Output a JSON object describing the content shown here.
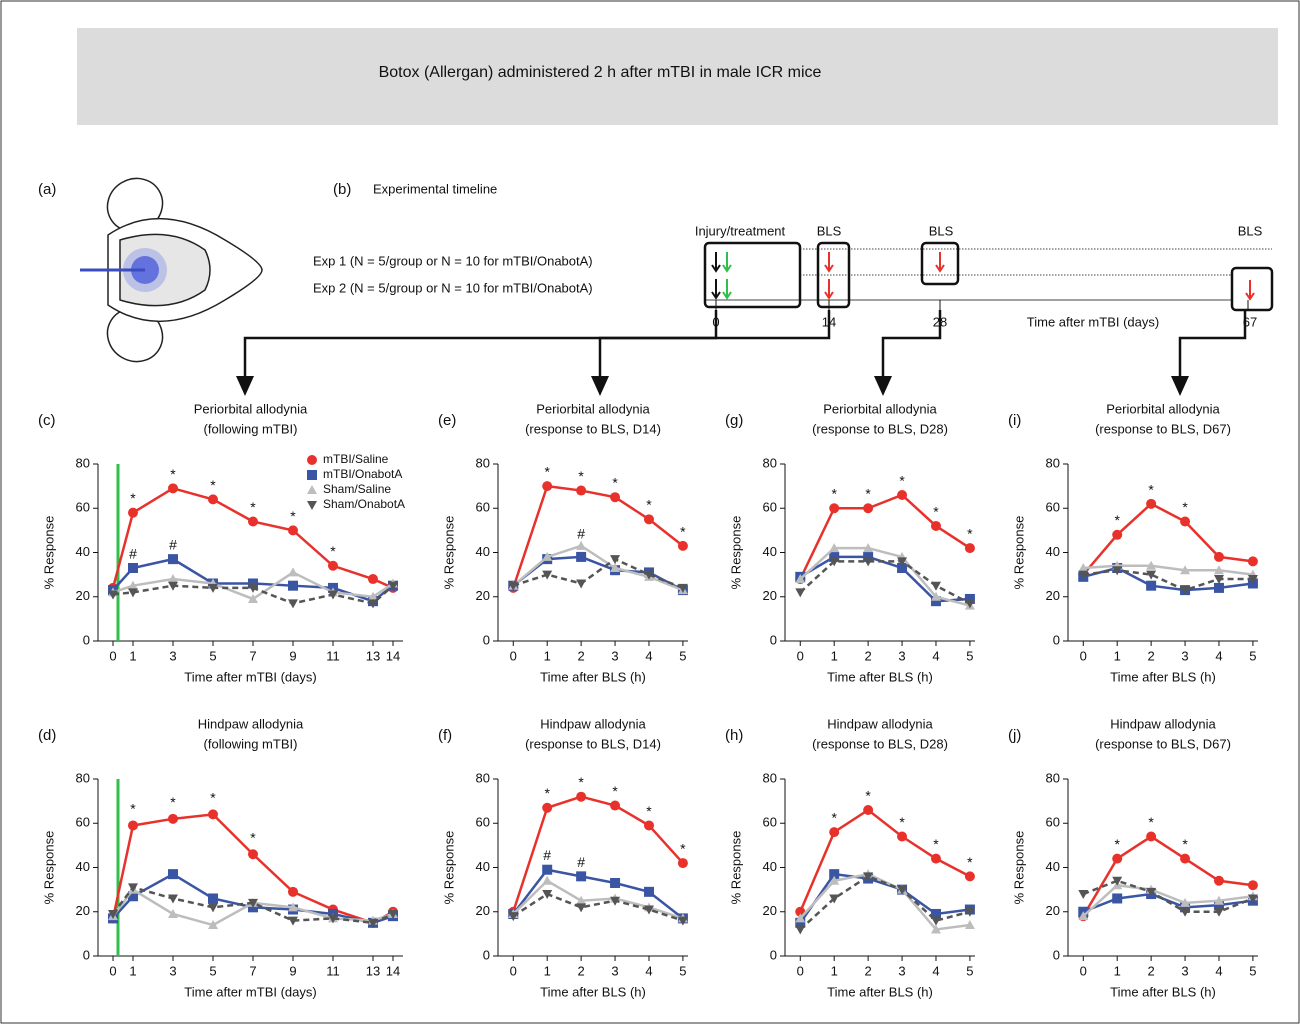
{
  "figure": {
    "banner": "Botox (Allergan) administered 2 h after mTBI in male ICR mice",
    "panel_a": "(a)",
    "panel_b": "(b)"
  },
  "timeline": {
    "title": "Experimental timeline",
    "labels": [
      "Injury/treatment",
      "BLS",
      "BLS",
      "BLS"
    ],
    "experiments": [
      "Exp 1 (N = 5/group or N = 10 for mTBI/OnabotA)",
      "Exp 2 (N = 5/group or N = 10 for mTBI/OnabotA)"
    ],
    "ticks": [
      "0",
      "14",
      "28",
      "67"
    ],
    "axis_label": "Time after mTBI (days)"
  },
  "chart_data": [
    {
      "type": "line",
      "panel": "(c)",
      "title": "Periorbital allodynia",
      "subtitle": "(following mTBI)",
      "x_label": "Time after mTBI (days)",
      "y_label": "% Response",
      "x": [
        0,
        1,
        3,
        5,
        7,
        9,
        11,
        13,
        14
      ],
      "xlim": [
        -0.75,
        14.5
      ],
      "xticks": [
        0,
        1,
        3,
        5,
        7,
        9,
        11,
        13,
        14
      ],
      "ylim": [
        0,
        80
      ],
      "yticks": [
        0,
        20,
        40,
        60,
        80
      ],
      "injury_line": {
        "x": 0.25,
        "color": "#2fbf4a"
      },
      "legend": "upper right",
      "series": [
        {
          "name": "mTBI/Saline",
          "color": "#e8312a",
          "marker": "circle",
          "dash": false,
          "values": [
            24,
            58,
            69,
            64,
            54,
            50,
            34,
            28,
            24
          ]
        },
        {
          "name": "mTBI/OnabotA",
          "color": "#3a55a4",
          "marker": "square",
          "dash": false,
          "values": [
            23,
            33,
            37,
            26,
            26,
            25,
            24,
            18,
            25
          ]
        },
        {
          "name": "Sham/Saline",
          "color": "#bdbdbd",
          "marker": "triangle-up",
          "dash": false,
          "values": [
            22,
            25,
            28,
            26,
            19,
            31,
            22,
            20,
            26
          ]
        },
        {
          "name": "Sham/OnabotA",
          "color": "#555555",
          "marker": "triangle-down",
          "dash": true,
          "values": [
            21,
            22,
            25,
            24,
            24,
            17,
            21,
            17,
            25
          ]
        }
      ],
      "annotations": [
        {
          "text": "*",
          "x": 1,
          "y": 64,
          "color": "#e8312a"
        },
        {
          "text": "*",
          "x": 3,
          "y": 75,
          "color": "#e8312a"
        },
        {
          "text": "*",
          "x": 5,
          "y": 70,
          "color": "#e8312a"
        },
        {
          "text": "*",
          "x": 7,
          "y": 60,
          "color": "#e8312a"
        },
        {
          "text": "*",
          "x": 9,
          "y": 56,
          "color": "#e8312a"
        },
        {
          "text": "*",
          "x": 11,
          "y": 40,
          "color": "#e8312a"
        },
        {
          "text": "#",
          "x": 1,
          "y": 39,
          "color": "#3a55a4"
        },
        {
          "text": "#",
          "x": 3,
          "y": 43,
          "color": "#3a55a4"
        }
      ]
    },
    {
      "type": "line",
      "panel": "(d)",
      "title": "Hindpaw allodynia",
      "subtitle": "(following mTBI)",
      "x_label": "Time after mTBI (days)",
      "y_label": "% Response",
      "x": [
        0,
        1,
        3,
        5,
        7,
        9,
        11,
        13,
        14
      ],
      "xlim": [
        -0.75,
        14.5
      ],
      "xticks": [
        0,
        1,
        3,
        5,
        7,
        9,
        11,
        13,
        14
      ],
      "ylim": [
        0,
        80
      ],
      "yticks": [
        0,
        20,
        40,
        60,
        80
      ],
      "injury_line": {
        "x": 0.25,
        "color": "#2fbf4a"
      },
      "series": [
        {
          "name": "mTBI/Saline",
          "color": "#e8312a",
          "marker": "circle",
          "dash": false,
          "values": [
            17,
            59,
            62,
            64,
            46,
            29,
            21,
            15,
            20
          ]
        },
        {
          "name": "mTBI/OnabotA",
          "color": "#3a55a4",
          "marker": "square",
          "dash": false,
          "values": [
            17,
            27,
            37,
            26,
            22,
            21,
            19,
            15,
            18
          ]
        },
        {
          "name": "Sham/Saline",
          "color": "#bdbdbd",
          "marker": "triangle-up",
          "dash": false,
          "values": [
            18,
            30,
            19,
            14,
            24,
            22,
            17,
            16,
            19
          ]
        },
        {
          "name": "Sham/OnabotA",
          "color": "#555555",
          "marker": "triangle-down",
          "dash": true,
          "values": [
            19,
            31,
            26,
            22,
            24,
            16,
            17,
            15,
            19
          ]
        }
      ],
      "annotations": [
        {
          "text": "*",
          "x": 1,
          "y": 66,
          "color": "#e8312a"
        },
        {
          "text": "*",
          "x": 3,
          "y": 69,
          "color": "#e8312a"
        },
        {
          "text": "*",
          "x": 5,
          "y": 71,
          "color": "#e8312a"
        },
        {
          "text": "*",
          "x": 7,
          "y": 53,
          "color": "#e8312a"
        }
      ]
    },
    {
      "type": "line",
      "panel": "(e)",
      "title": "Periorbital allodynia",
      "subtitle": "(response to BLS, D14)",
      "x_label": "Time after BLS (h)",
      "y_label": "% Response",
      "x": [
        0,
        1,
        2,
        3,
        4,
        5
      ],
      "xlim": [
        -0.45,
        5.15
      ],
      "xticks": [
        0,
        1,
        2,
        3,
        4,
        5
      ],
      "ylim": [
        0,
        80
      ],
      "yticks": [
        0,
        20,
        40,
        60,
        80
      ],
      "series": [
        {
          "name": "mTBI/Saline",
          "color": "#e8312a",
          "marker": "circle",
          "dash": false,
          "values": [
            24,
            70,
            68,
            65,
            55,
            43
          ]
        },
        {
          "name": "mTBI/OnabotA",
          "color": "#3a55a4",
          "marker": "square",
          "dash": false,
          "values": [
            25,
            37,
            38,
            32,
            31,
            23
          ]
        },
        {
          "name": "Sham/Saline",
          "color": "#bdbdbd",
          "marker": "triangle-up",
          "dash": false,
          "values": [
            25,
            38,
            43,
            33,
            29,
            23
          ]
        },
        {
          "name": "Sham/OnabotA",
          "color": "#555555",
          "marker": "triangle-down",
          "dash": true,
          "values": [
            25,
            30,
            26,
            37,
            30,
            24
          ]
        }
      ],
      "annotations": [
        {
          "text": "*",
          "x": 1,
          "y": 76,
          "color": "#e8312a"
        },
        {
          "text": "*",
          "x": 2,
          "y": 74,
          "color": "#e8312a"
        },
        {
          "text": "*",
          "x": 3,
          "y": 71,
          "color": "#e8312a"
        },
        {
          "text": "*",
          "x": 4,
          "y": 61,
          "color": "#e8312a"
        },
        {
          "text": "*",
          "x": 5,
          "y": 49,
          "color": "#e8312a"
        },
        {
          "text": "#",
          "x": 2,
          "y": 48,
          "color": "#3a55a4"
        }
      ]
    },
    {
      "type": "line",
      "panel": "(f)",
      "title": "Hindpaw allodynia",
      "subtitle": "(response to BLS, D14)",
      "x_label": "Time after BLS (h)",
      "y_label": "% Response",
      "x": [
        0,
        1,
        2,
        3,
        4,
        5
      ],
      "xlim": [
        -0.45,
        5.15
      ],
      "xticks": [
        0,
        1,
        2,
        3,
        4,
        5
      ],
      "ylim": [
        0,
        80
      ],
      "yticks": [
        0,
        20,
        40,
        60,
        80
      ],
      "series": [
        {
          "name": "mTBI/Saline",
          "color": "#e8312a",
          "marker": "circle",
          "dash": false,
          "values": [
            20,
            67,
            72,
            68,
            59,
            42
          ]
        },
        {
          "name": "mTBI/OnabotA",
          "color": "#3a55a4",
          "marker": "square",
          "dash": false,
          "values": [
            19,
            39,
            36,
            33,
            29,
            17
          ]
        },
        {
          "name": "Sham/Saline",
          "color": "#bdbdbd",
          "marker": "triangle-up",
          "dash": false,
          "values": [
            19,
            34,
            25,
            26,
            22,
            17
          ]
        },
        {
          "name": "Sham/OnabotA",
          "color": "#555555",
          "marker": "triangle-down",
          "dash": true,
          "values": [
            18,
            28,
            22,
            25,
            21,
            16
          ]
        }
      ],
      "annotations": [
        {
          "text": "*",
          "x": 1,
          "y": 73,
          "color": "#e8312a"
        },
        {
          "text": "*",
          "x": 2,
          "y": 78,
          "color": "#e8312a"
        },
        {
          "text": "*",
          "x": 3,
          "y": 74,
          "color": "#e8312a"
        },
        {
          "text": "*",
          "x": 4,
          "y": 65,
          "color": "#e8312a"
        },
        {
          "text": "*",
          "x": 5,
          "y": 48,
          "color": "#e8312a"
        },
        {
          "text": "#",
          "x": 1,
          "y": 45,
          "color": "#3a55a4"
        },
        {
          "text": "#",
          "x": 2,
          "y": 42,
          "color": "#3a55a4"
        }
      ]
    },
    {
      "type": "line",
      "panel": "(g)",
      "title": "Periorbital allodynia",
      "subtitle": "(response to BLS, D28)",
      "x_label": "Time after BLS (h)",
      "y_label": "% Response",
      "x": [
        0,
        1,
        2,
        3,
        4,
        5
      ],
      "xlim": [
        -0.45,
        5.15
      ],
      "xticks": [
        0,
        1,
        2,
        3,
        4,
        5
      ],
      "ylim": [
        0,
        80
      ],
      "yticks": [
        0,
        20,
        40,
        60,
        80
      ],
      "series": [
        {
          "name": "mTBI/Saline",
          "color": "#e8312a",
          "marker": "circle",
          "dash": false,
          "values": [
            28,
            60,
            60,
            66,
            52,
            42
          ]
        },
        {
          "name": "mTBI/OnabotA",
          "color": "#3a55a4",
          "marker": "square",
          "dash": false,
          "values": [
            29,
            38,
            38,
            33,
            18,
            19
          ]
        },
        {
          "name": "Sham/Saline",
          "color": "#bdbdbd",
          "marker": "triangle-up",
          "dash": false,
          "values": [
            28,
            42,
            42,
            38,
            20,
            16
          ]
        },
        {
          "name": "Sham/OnabotA",
          "color": "#555555",
          "marker": "triangle-down",
          "dash": true,
          "values": [
            22,
            36,
            36,
            36,
            25,
            17
          ]
        }
      ],
      "annotations": [
        {
          "text": "*",
          "x": 1,
          "y": 66,
          "color": "#e8312a"
        },
        {
          "text": "*",
          "x": 2,
          "y": 66,
          "color": "#e8312a"
        },
        {
          "text": "*",
          "x": 3,
          "y": 72,
          "color": "#e8312a"
        },
        {
          "text": "*",
          "x": 4,
          "y": 58,
          "color": "#e8312a"
        },
        {
          "text": "*",
          "x": 5,
          "y": 48,
          "color": "#e8312a"
        }
      ]
    },
    {
      "type": "line",
      "panel": "(h)",
      "title": "Hindpaw allodynia",
      "subtitle": "(response to BLS, D28)",
      "x_label": "Time after BLS (h)",
      "y_label": "% Response",
      "x": [
        0,
        1,
        2,
        3,
        4,
        5
      ],
      "xlim": [
        -0.45,
        5.15
      ],
      "xticks": [
        0,
        1,
        2,
        3,
        4,
        5
      ],
      "ylim": [
        0,
        80
      ],
      "yticks": [
        0,
        20,
        40,
        60,
        80
      ],
      "series": [
        {
          "name": "mTBI/Saline",
          "color": "#e8312a",
          "marker": "circle",
          "dash": false,
          "values": [
            20,
            56,
            66,
            54,
            44,
            36
          ]
        },
        {
          "name": "mTBI/OnabotA",
          "color": "#3a55a4",
          "marker": "square",
          "dash": false,
          "values": [
            15,
            37,
            35,
            30,
            19,
            21
          ]
        },
        {
          "name": "Sham/Saline",
          "color": "#bdbdbd",
          "marker": "triangle-up",
          "dash": false,
          "values": [
            17,
            34,
            37,
            30,
            12,
            14
          ]
        },
        {
          "name": "Sham/OnabotA",
          "color": "#555555",
          "marker": "triangle-down",
          "dash": true,
          "values": [
            12,
            26,
            36,
            30,
            16,
            20
          ]
        }
      ],
      "annotations": [
        {
          "text": "*",
          "x": 1,
          "y": 62,
          "color": "#e8312a"
        },
        {
          "text": "*",
          "x": 2,
          "y": 72,
          "color": "#e8312a"
        },
        {
          "text": "*",
          "x": 3,
          "y": 60,
          "color": "#e8312a"
        },
        {
          "text": "*",
          "x": 4,
          "y": 50,
          "color": "#e8312a"
        },
        {
          "text": "*",
          "x": 5,
          "y": 42,
          "color": "#e8312a"
        }
      ]
    },
    {
      "type": "line",
      "panel": "(i)",
      "title": "Periorbital allodynia",
      "subtitle": "(response to BLS, D67)",
      "x_label": "Time after BLS (h)",
      "y_label": "% Response",
      "x": [
        0,
        1,
        2,
        3,
        4,
        5
      ],
      "xlim": [
        -0.45,
        5.15
      ],
      "xticks": [
        0,
        1,
        2,
        3,
        4,
        5
      ],
      "ylim": [
        0,
        80
      ],
      "yticks": [
        0,
        20,
        40,
        60,
        80
      ],
      "series": [
        {
          "name": "mTBI/Saline",
          "color": "#e8312a",
          "marker": "circle",
          "dash": false,
          "values": [
            30,
            48,
            62,
            54,
            38,
            36
          ]
        },
        {
          "name": "mTBI/OnabotA",
          "color": "#3a55a4",
          "marker": "square",
          "dash": false,
          "values": [
            29,
            33,
            25,
            23,
            24,
            26
          ]
        },
        {
          "name": "Sham/Saline",
          "color": "#bdbdbd",
          "marker": "triangle-up",
          "dash": false,
          "values": [
            33,
            34,
            34,
            32,
            32,
            30
          ]
        },
        {
          "name": "Sham/OnabotA",
          "color": "#555555",
          "marker": "triangle-down",
          "dash": true,
          "values": [
            30,
            32,
            30,
            23,
            28,
            28
          ]
        }
      ],
      "annotations": [
        {
          "text": "*",
          "x": 1,
          "y": 54,
          "color": "#e8312a"
        },
        {
          "text": "*",
          "x": 2,
          "y": 68,
          "color": "#e8312a"
        },
        {
          "text": "*",
          "x": 3,
          "y": 60,
          "color": "#e8312a"
        }
      ]
    },
    {
      "type": "line",
      "panel": "(j)",
      "title": "Hindpaw allodynia",
      "subtitle": "(response to BLS, D67)",
      "x_label": "Time after BLS (h)",
      "y_label": "% Response",
      "x": [
        0,
        1,
        2,
        3,
        4,
        5
      ],
      "xlim": [
        -0.45,
        5.15
      ],
      "xticks": [
        0,
        1,
        2,
        3,
        4,
        5
      ],
      "ylim": [
        0,
        80
      ],
      "yticks": [
        0,
        20,
        40,
        60,
        80
      ],
      "series": [
        {
          "name": "mTBI/Saline",
          "color": "#e8312a",
          "marker": "circle",
          "dash": false,
          "values": [
            18,
            44,
            54,
            44,
            34,
            32
          ]
        },
        {
          "name": "mTBI/OnabotA",
          "color": "#3a55a4",
          "marker": "square",
          "dash": false,
          "values": [
            20,
            26,
            28,
            22,
            23,
            25
          ]
        },
        {
          "name": "Sham/Saline",
          "color": "#bdbdbd",
          "marker": "triangle-up",
          "dash": false,
          "values": [
            18,
            32,
            30,
            24,
            25,
            27
          ]
        },
        {
          "name": "Sham/OnabotA",
          "color": "#555555",
          "marker": "triangle-down",
          "dash": true,
          "values": [
            28,
            34,
            29,
            20,
            20,
            26
          ]
        }
      ],
      "annotations": [
        {
          "text": "*",
          "x": 1,
          "y": 50,
          "color": "#e8312a"
        },
        {
          "text": "*",
          "x": 2,
          "y": 60,
          "color": "#e8312a"
        },
        {
          "text": "*",
          "x": 3,
          "y": 50,
          "color": "#e8312a"
        }
      ]
    }
  ]
}
